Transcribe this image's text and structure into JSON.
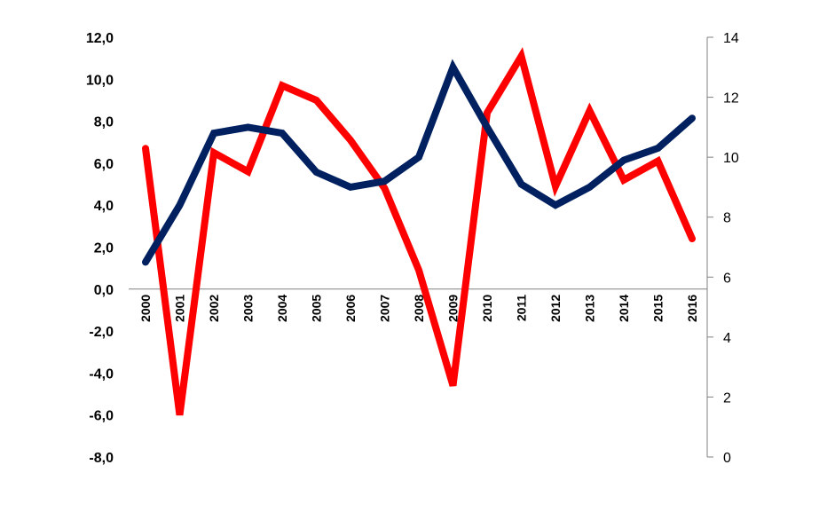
{
  "chart_data": {
    "type": "line",
    "categories": [
      "2000",
      "2001",
      "2002",
      "2003",
      "2004",
      "2005",
      "2006",
      "2007",
      "2008",
      "2009",
      "2010",
      "2011",
      "2012",
      "2013",
      "2014",
      "2015",
      "2016"
    ],
    "series": [
      {
        "axis": "left",
        "color": "#ff0000",
        "values": [
          6.7,
          -6.0,
          6.5,
          5.6,
          9.7,
          9.0,
          7.1,
          4.8,
          0.9,
          -4.6,
          8.4,
          11.1,
          4.9,
          8.5,
          5.2,
          6.1,
          2.4
        ]
      },
      {
        "axis": "right",
        "color": "#002060",
        "values": [
          6.5,
          8.4,
          10.8,
          11.0,
          10.8,
          9.5,
          9.0,
          9.2,
          10.0,
          13.0,
          11.0,
          9.1,
          8.4,
          9.0,
          9.9,
          10.3,
          11.3
        ]
      }
    ],
    "y_left": {
      "ylim": [
        -8,
        12
      ],
      "ticks": [
        -8,
        -6,
        -4,
        -2,
        0,
        2,
        4,
        6,
        8,
        10,
        12
      ],
      "tick_labels": [
        "-8,0",
        "-6,0",
        "-4,0",
        "-2,0",
        "0,0",
        "2,0",
        "4,0",
        "6,0",
        "8,0",
        "10,0",
        "12,0"
      ]
    },
    "y_right": {
      "ylim": [
        0,
        14
      ],
      "ticks": [
        0,
        2,
        4,
        6,
        8,
        10,
        12,
        14
      ],
      "tick_labels": [
        "0",
        "2",
        "4",
        "6",
        "8",
        "10",
        "12",
        "14"
      ]
    },
    "grid": false,
    "legend": "none"
  }
}
